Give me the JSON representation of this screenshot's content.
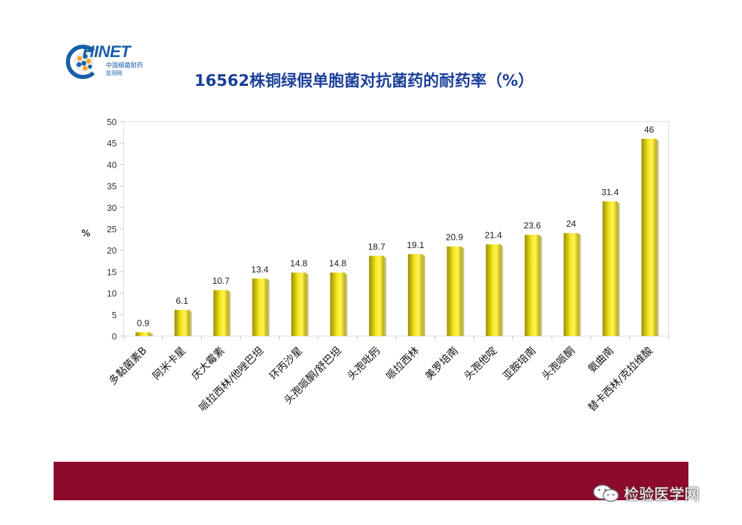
{
  "logo": {
    "main": "HINET",
    "sub1": "中国细菌耐药",
    "sub2": "监测网"
  },
  "title": "16562株铜绿假单胞菌对抗菌药的耐药率（%）",
  "watermark": "检验医学网",
  "colors": {
    "bar_fill": "#f5e010",
    "bar_shadow": "#8a7f00",
    "title": "#1b3f99",
    "footer": "#8c0a2c"
  },
  "chart_data": {
    "type": "bar",
    "ylabel": "%",
    "ylim": [
      0,
      50
    ],
    "yticks": [
      0,
      5,
      10,
      15,
      20,
      25,
      30,
      35,
      40,
      45,
      50
    ],
    "grid": false,
    "categories": [
      "多黏菌素B",
      "阿米卡星",
      "庆大霉素",
      "哌拉西林/他唑巴坦",
      "环丙沙星",
      "头孢哌酮/舒巴坦",
      "头孢吡肟",
      "哌拉西林",
      "美罗培南",
      "头孢他啶",
      "亚胺培南",
      "头孢哌酮",
      "氨曲南",
      "替卡西林/克拉维酸"
    ],
    "values": [
      0.9,
      6.1,
      10.7,
      13.4,
      14.8,
      14.8,
      18.7,
      19.1,
      20.9,
      21.4,
      23.6,
      24,
      31.4,
      46
    ],
    "value_labels": [
      "0.9",
      "6.1",
      "10.7",
      "13.4",
      "14.8",
      "14.8",
      "18.7",
      "19.1",
      "20.9",
      "21.4",
      "23.6",
      "24",
      "31.4",
      "46"
    ]
  }
}
